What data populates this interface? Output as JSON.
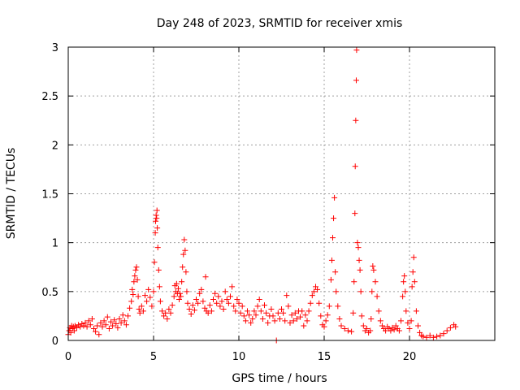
{
  "chart_data": {
    "type": "scatter",
    "title": "Day 248 of 2023, SRMTID for receiver xmis",
    "xlabel": "GPS time / hours",
    "ylabel": "SRMTID / TECUs",
    "xlim": [
      0,
      25
    ],
    "ylim": [
      0,
      3
    ],
    "xticks": [
      0,
      5,
      10,
      15,
      20
    ],
    "xtick_labels": [
      "0",
      "5",
      "10",
      "15",
      "20"
    ],
    "yticks": [
      0,
      0.5,
      1,
      1.5,
      2,
      2.5,
      3
    ],
    "ytick_labels": [
      "0",
      "0.5",
      "1",
      "1.5",
      "2",
      "2.5",
      "3"
    ],
    "grid": true,
    "marker": "plus",
    "marker_color": "#ff0000",
    "series": [
      {
        "name": "SRMTID",
        "points": [
          [
            0.0,
            0.06
          ],
          [
            0.05,
            0.1
          ],
          [
            0.1,
            0.13
          ],
          [
            0.15,
            0.08
          ],
          [
            0.2,
            0.15
          ],
          [
            0.25,
            0.12
          ],
          [
            0.3,
            0.14
          ],
          [
            0.35,
            0.1
          ],
          [
            0.4,
            0.15
          ],
          [
            0.5,
            0.13
          ],
          [
            0.6,
            0.16
          ],
          [
            0.7,
            0.14
          ],
          [
            0.8,
            0.17
          ],
          [
            0.9,
            0.15
          ],
          [
            1.0,
            0.18
          ],
          [
            1.1,
            0.14
          ],
          [
            1.2,
            0.2
          ],
          [
            1.3,
            0.16
          ],
          [
            1.4,
            0.22
          ],
          [
            1.5,
            0.12
          ],
          [
            1.6,
            0.09
          ],
          [
            1.7,
            0.15
          ],
          [
            1.8,
            0.06
          ],
          [
            1.9,
            0.18
          ],
          [
            2.0,
            0.14
          ],
          [
            2.1,
            0.2
          ],
          [
            2.2,
            0.16
          ],
          [
            2.3,
            0.24
          ],
          [
            2.4,
            0.12
          ],
          [
            2.5,
            0.19
          ],
          [
            2.6,
            0.15
          ],
          [
            2.7,
            0.21
          ],
          [
            2.8,
            0.17
          ],
          [
            2.9,
            0.13
          ],
          [
            3.0,
            0.22
          ],
          [
            3.1,
            0.18
          ],
          [
            3.2,
            0.26
          ],
          [
            3.3,
            0.2
          ],
          [
            3.4,
            0.16
          ],
          [
            3.5,
            0.25
          ],
          [
            3.6,
            0.33
          ],
          [
            3.7,
            0.4
          ],
          [
            3.75,
            0.52
          ],
          [
            3.8,
            0.47
          ],
          [
            3.85,
            0.6
          ],
          [
            3.9,
            0.66
          ],
          [
            3.95,
            0.72
          ],
          [
            4.0,
            0.75
          ],
          [
            4.05,
            0.62
          ],
          [
            4.1,
            0.45
          ],
          [
            4.15,
            0.32
          ],
          [
            4.2,
            0.28
          ],
          [
            4.3,
            0.35
          ],
          [
            4.4,
            0.3
          ],
          [
            4.5,
            0.46
          ],
          [
            4.6,
            0.4
          ],
          [
            4.7,
            0.52
          ],
          [
            4.8,
            0.44
          ],
          [
            4.9,
            0.35
          ],
          [
            5.0,
            0.5
          ],
          [
            5.05,
            0.8
          ],
          [
            5.1,
            1.1
          ],
          [
            5.12,
            1.22
          ],
          [
            5.15,
            1.28
          ],
          [
            5.18,
            1.25
          ],
          [
            5.2,
            1.33
          ],
          [
            5.22,
            1.15
          ],
          [
            5.25,
            0.95
          ],
          [
            5.3,
            0.72
          ],
          [
            5.35,
            0.55
          ],
          [
            5.4,
            0.4
          ],
          [
            5.5,
            0.3
          ],
          [
            5.6,
            0.25
          ],
          [
            5.7,
            0.28
          ],
          [
            5.8,
            0.22
          ],
          [
            5.9,
            0.32
          ],
          [
            6.0,
            0.28
          ],
          [
            6.1,
            0.36
          ],
          [
            6.2,
            0.45
          ],
          [
            6.25,
            0.56
          ],
          [
            6.3,
            0.5
          ],
          [
            6.35,
            0.58
          ],
          [
            6.4,
            0.48
          ],
          [
            6.45,
            0.53
          ],
          [
            6.5,
            0.42
          ],
          [
            6.55,
            0.48
          ],
          [
            6.6,
            0.45
          ],
          [
            6.65,
            0.6
          ],
          [
            6.7,
            0.75
          ],
          [
            6.75,
            0.88
          ],
          [
            6.8,
            1.03
          ],
          [
            6.85,
            0.92
          ],
          [
            6.9,
            0.7
          ],
          [
            6.95,
            0.5
          ],
          [
            7.0,
            0.38
          ],
          [
            7.1,
            0.32
          ],
          [
            7.2,
            0.27
          ],
          [
            7.3,
            0.36
          ],
          [
            7.4,
            0.31
          ],
          [
            7.5,
            0.42
          ],
          [
            7.6,
            0.38
          ],
          [
            7.7,
            0.48
          ],
          [
            7.8,
            0.52
          ],
          [
            7.9,
            0.4
          ],
          [
            8.0,
            0.33
          ],
          [
            8.05,
            0.65
          ],
          [
            8.1,
            0.3
          ],
          [
            8.2,
            0.28
          ],
          [
            8.3,
            0.36
          ],
          [
            8.4,
            0.3
          ],
          [
            8.5,
            0.42
          ],
          [
            8.6,
            0.48
          ],
          [
            8.7,
            0.38
          ],
          [
            8.8,
            0.45
          ],
          [
            8.9,
            0.35
          ],
          [
            9.0,
            0.4
          ],
          [
            9.1,
            0.32
          ],
          [
            9.2,
            0.5
          ],
          [
            9.3,
            0.42
          ],
          [
            9.4,
            0.38
          ],
          [
            9.5,
            0.45
          ],
          [
            9.6,
            0.55
          ],
          [
            9.7,
            0.35
          ],
          [
            9.8,
            0.3
          ],
          [
            9.9,
            0.42
          ],
          [
            10.0,
            0.38
          ],
          [
            10.1,
            0.28
          ],
          [
            10.2,
            0.35
          ],
          [
            10.3,
            0.25
          ],
          [
            10.4,
            0.2
          ],
          [
            10.5,
            0.3
          ],
          [
            10.6,
            0.26
          ],
          [
            10.7,
            0.18
          ],
          [
            10.8,
            0.22
          ],
          [
            10.9,
            0.3
          ],
          [
            11.0,
            0.26
          ],
          [
            11.1,
            0.35
          ],
          [
            11.2,
            0.42
          ],
          [
            11.3,
            0.3
          ],
          [
            11.4,
            0.22
          ],
          [
            11.5,
            0.36
          ],
          [
            11.6,
            0.28
          ],
          [
            11.7,
            0.18
          ],
          [
            11.8,
            0.25
          ],
          [
            11.9,
            0.32
          ],
          [
            12.0,
            0.25
          ],
          [
            12.1,
            0.2
          ],
          [
            12.2,
            0.0
          ],
          [
            12.3,
            0.28
          ],
          [
            12.4,
            0.22
          ],
          [
            12.5,
            0.32
          ],
          [
            12.6,
            0.28
          ],
          [
            12.7,
            0.2
          ],
          [
            12.8,
            0.46
          ],
          [
            12.9,
            0.35
          ],
          [
            13.0,
            0.18
          ],
          [
            13.1,
            0.26
          ],
          [
            13.2,
            0.2
          ],
          [
            13.3,
            0.28
          ],
          [
            13.4,
            0.22
          ],
          [
            13.5,
            0.3
          ],
          [
            13.6,
            0.24
          ],
          [
            13.7,
            0.3
          ],
          [
            13.8,
            0.15
          ],
          [
            13.9,
            0.26
          ],
          [
            14.0,
            0.2
          ],
          [
            14.1,
            0.3
          ],
          [
            14.2,
            0.38
          ],
          [
            14.3,
            0.46
          ],
          [
            14.4,
            0.5
          ],
          [
            14.5,
            0.55
          ],
          [
            14.6,
            0.52
          ],
          [
            14.7,
            0.38
          ],
          [
            14.8,
            0.25
          ],
          [
            14.9,
            0.16
          ],
          [
            15.0,
            0.14
          ],
          [
            15.1,
            0.2
          ],
          [
            15.2,
            0.26
          ],
          [
            15.3,
            0.35
          ],
          [
            15.4,
            0.62
          ],
          [
            15.45,
            0.82
          ],
          [
            15.5,
            1.05
          ],
          [
            15.55,
            1.25
          ],
          [
            15.6,
            1.46
          ],
          [
            15.65,
            0.7
          ],
          [
            15.7,
            0.5
          ],
          [
            15.8,
            0.35
          ],
          [
            15.9,
            0.22
          ],
          [
            16.0,
            0.15
          ],
          [
            16.2,
            0.12
          ],
          [
            16.4,
            0.1
          ],
          [
            16.6,
            0.09
          ],
          [
            16.7,
            0.28
          ],
          [
            16.75,
            0.6
          ],
          [
            16.8,
            1.3
          ],
          [
            16.82,
            1.78
          ],
          [
            16.85,
            2.25
          ],
          [
            16.88,
            2.66
          ],
          [
            16.9,
            2.97
          ],
          [
            16.95,
            1.0
          ],
          [
            17.0,
            0.95
          ],
          [
            17.05,
            0.82
          ],
          [
            17.1,
            0.72
          ],
          [
            17.15,
            0.5
          ],
          [
            17.2,
            0.25
          ],
          [
            17.3,
            0.15
          ],
          [
            17.4,
            0.1
          ],
          [
            17.5,
            0.12
          ],
          [
            17.6,
            0.08
          ],
          [
            17.7,
            0.1
          ],
          [
            17.75,
            0.22
          ],
          [
            17.8,
            0.5
          ],
          [
            17.85,
            0.76
          ],
          [
            17.9,
            0.72
          ],
          [
            18.0,
            0.6
          ],
          [
            18.1,
            0.45
          ],
          [
            18.2,
            0.3
          ],
          [
            18.3,
            0.2
          ],
          [
            18.4,
            0.15
          ],
          [
            18.5,
            0.12
          ],
          [
            18.6,
            0.1
          ],
          [
            18.7,
            0.14
          ],
          [
            18.8,
            0.12
          ],
          [
            18.9,
            0.1
          ],
          [
            19.0,
            0.13
          ],
          [
            19.1,
            0.11
          ],
          [
            19.2,
            0.15
          ],
          [
            19.3,
            0.12
          ],
          [
            19.4,
            0.1
          ],
          [
            19.5,
            0.2
          ],
          [
            19.6,
            0.45
          ],
          [
            19.65,
            0.6
          ],
          [
            19.7,
            0.66
          ],
          [
            19.75,
            0.5
          ],
          [
            19.8,
            0.3
          ],
          [
            19.9,
            0.18
          ],
          [
            20.0,
            0.12
          ],
          [
            20.1,
            0.2
          ],
          [
            20.15,
            0.55
          ],
          [
            20.2,
            0.7
          ],
          [
            20.25,
            0.85
          ],
          [
            20.3,
            0.6
          ],
          [
            20.4,
            0.3
          ],
          [
            20.5,
            0.15
          ],
          [
            20.6,
            0.08
          ],
          [
            20.7,
            0.05
          ],
          [
            20.8,
            0.04
          ],
          [
            21.0,
            0.03
          ],
          [
            21.2,
            0.05
          ],
          [
            21.4,
            0.03
          ],
          [
            21.6,
            0.04
          ],
          [
            21.8,
            0.05
          ],
          [
            22.0,
            0.07
          ],
          [
            22.2,
            0.1
          ],
          [
            22.4,
            0.13
          ],
          [
            22.6,
            0.16
          ],
          [
            22.7,
            0.14
          ]
        ]
      }
    ]
  }
}
